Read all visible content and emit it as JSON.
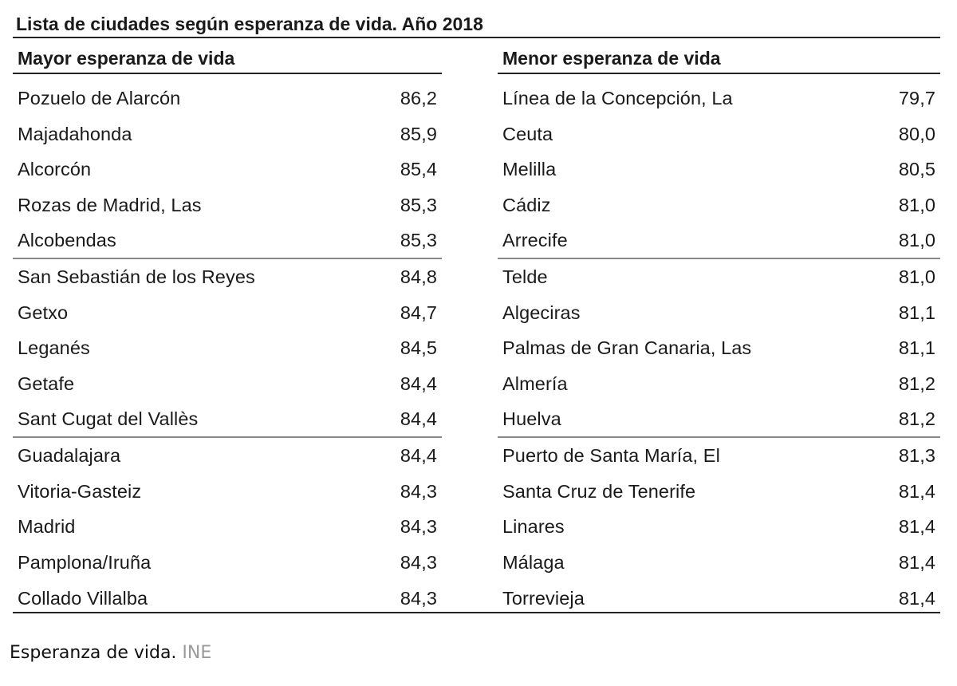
{
  "table": {
    "title": "Lista de ciudades según esperanza de vida. Año 2018",
    "left": {
      "header": "Mayor esperanza de vida",
      "rows": [
        {
          "city": "Pozuelo de Alarcón",
          "value": "86,2"
        },
        {
          "city": "Majadahonda",
          "value": "85,9"
        },
        {
          "city": "Alcorcón",
          "value": "85,4"
        },
        {
          "city": "Rozas de Madrid, Las",
          "value": "85,3"
        },
        {
          "city": "Alcobendas",
          "value": "85,3"
        },
        {
          "city": "San Sebastián de los Reyes",
          "value": "84,8"
        },
        {
          "city": "Getxo",
          "value": "84,7"
        },
        {
          "city": "Leganés",
          "value": "84,5"
        },
        {
          "city": "Getafe",
          "value": "84,4"
        },
        {
          "city": "Sant Cugat del Vallès",
          "value": "84,4"
        },
        {
          "city": "Guadalajara",
          "value": "84,4"
        },
        {
          "city": "Vitoria-Gasteiz",
          "value": "84,3"
        },
        {
          "city": "Madrid",
          "value": "84,3"
        },
        {
          "city": "Pamplona/Iruña",
          "value": "84,3"
        },
        {
          "city": "Collado Villalba",
          "value": "84,3"
        }
      ]
    },
    "right": {
      "header": "Menor esperanza de vida",
      "rows": [
        {
          "city": "Línea de la Concepción, La",
          "value": "79,7"
        },
        {
          "city": "Ceuta",
          "value": "80,0"
        },
        {
          "city": "Melilla",
          "value": "80,5"
        },
        {
          "city": "Cádiz",
          "value": "81,0"
        },
        {
          "city": "Arrecife",
          "value": "81,0"
        },
        {
          "city": "Telde",
          "value": "81,0"
        },
        {
          "city": "Algeciras",
          "value": "81,1"
        },
        {
          "city": "Palmas de Gran Canaria, Las",
          "value": "81,1"
        },
        {
          "city": "Almería",
          "value": "81,2"
        },
        {
          "city": "Huelva",
          "value": "81,2"
        },
        {
          "city": "Puerto de Santa María, El",
          "value": "81,3"
        },
        {
          "city": "Santa Cruz de Tenerife",
          "value": "81,4"
        },
        {
          "city": "Linares",
          "value": "81,4"
        },
        {
          "city": "Málaga",
          "value": "81,4"
        },
        {
          "city": "Torrevieja",
          "value": "81,4"
        }
      ]
    }
  },
  "caption": {
    "text": "Esperanza de vida.",
    "source": "INE"
  }
}
